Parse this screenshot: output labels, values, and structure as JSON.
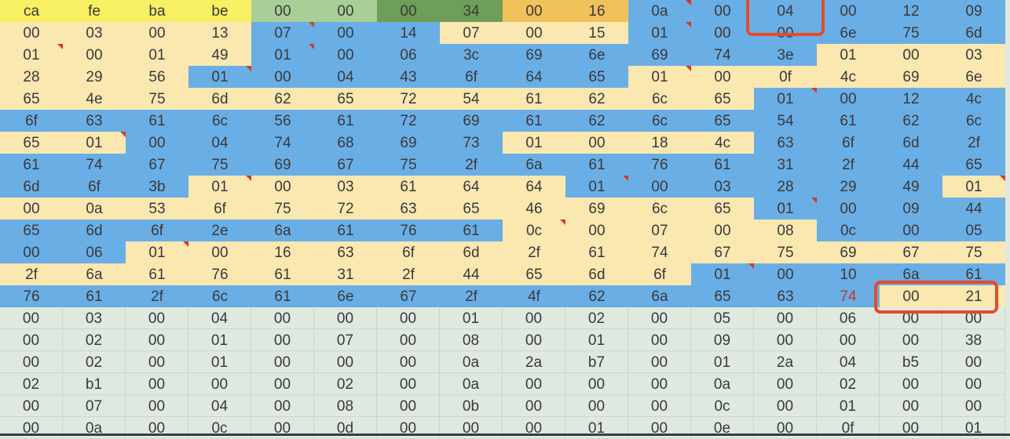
{
  "hex_sheet": {
    "rows": [
      [
        "ca",
        "fe",
        "ba",
        "be",
        "00",
        "00",
        "00",
        "34",
        "00",
        "16",
        "0a",
        "00",
        "04",
        "00",
        "12",
        "09"
      ],
      [
        "00",
        "03",
        "00",
        "13",
        "07",
        "00",
        "14",
        "07",
        "00",
        "15",
        "01",
        "00",
        "00",
        "6e",
        "75",
        "6d"
      ],
      [
        "01",
        "00",
        "01",
        "49",
        "01",
        "00",
        "06",
        "3c",
        "69",
        "6e",
        "69",
        "74",
        "3e",
        "01",
        "00",
        "03"
      ],
      [
        "28",
        "29",
        "56",
        "01",
        "00",
        "04",
        "43",
        "6f",
        "64",
        "65",
        "01",
        "00",
        "0f",
        "4c",
        "69",
        "6e"
      ],
      [
        "65",
        "4e",
        "75",
        "6d",
        "62",
        "65",
        "72",
        "54",
        "61",
        "62",
        "6c",
        "65",
        "01",
        "00",
        "12",
        "4c"
      ],
      [
        "6f",
        "63",
        "61",
        "6c",
        "56",
        "61",
        "72",
        "69",
        "61",
        "62",
        "6c",
        "65",
        "54",
        "61",
        "62",
        "6c"
      ],
      [
        "65",
        "01",
        "00",
        "04",
        "74",
        "68",
        "69",
        "73",
        "01",
        "00",
        "18",
        "4c",
        "63",
        "6f",
        "6d",
        "2f"
      ],
      [
        "61",
        "74",
        "67",
        "75",
        "69",
        "67",
        "75",
        "2f",
        "6a",
        "61",
        "76",
        "61",
        "31",
        "2f",
        "44",
        "65"
      ],
      [
        "6d",
        "6f",
        "3b",
        "01",
        "00",
        "03",
        "61",
        "64",
        "64",
        "01",
        "00",
        "03",
        "28",
        "29",
        "49",
        "01"
      ],
      [
        "00",
        "0a",
        "53",
        "6f",
        "75",
        "72",
        "63",
        "65",
        "46",
        "69",
        "6c",
        "65",
        "01",
        "00",
        "09",
        "44"
      ],
      [
        "65",
        "6d",
        "6f",
        "2e",
        "6a",
        "61",
        "76",
        "61",
        "0c",
        "00",
        "07",
        "00",
        "08",
        "0c",
        "00",
        "05"
      ],
      [
        "00",
        "06",
        "01",
        "00",
        "16",
        "63",
        "6f",
        "6d",
        "2f",
        "61",
        "74",
        "67",
        "75",
        "69",
        "67",
        "75"
      ],
      [
        "2f",
        "6a",
        "61",
        "76",
        "61",
        "31",
        "2f",
        "44",
        "65",
        "6d",
        "6f",
        "01",
        "00",
        "10",
        "6a",
        "61"
      ],
      [
        "76",
        "61",
        "2f",
        "6c",
        "61",
        "6e",
        "67",
        "2f",
        "4f",
        "62",
        "6a",
        "65",
        "63",
        "74",
        "00",
        "21"
      ],
      [
        "00",
        "03",
        "00",
        "04",
        "00",
        "00",
        "00",
        "01",
        "00",
        "02",
        "00",
        "05",
        "00",
        "06",
        "00",
        "00"
      ],
      [
        "00",
        "02",
        "00",
        "01",
        "00",
        "07",
        "00",
        "08",
        "00",
        "01",
        "00",
        "09",
        "00",
        "00",
        "00",
        "38"
      ],
      [
        "00",
        "02",
        "00",
        "01",
        "00",
        "00",
        "00",
        "0a",
        "2a",
        "b7",
        "00",
        "01",
        "2a",
        "04",
        "b5",
        "00"
      ],
      [
        "02",
        "b1",
        "00",
        "00",
        "00",
        "02",
        "00",
        "0a",
        "00",
        "00",
        "00",
        "0a",
        "00",
        "02",
        "00",
        "00"
      ],
      [
        "00",
        "07",
        "00",
        "04",
        "00",
        "08",
        "00",
        "0b",
        "00",
        "00",
        "00",
        "0c",
        "00",
        "01",
        "00",
        "00"
      ],
      [
        "00",
        "0a",
        "00",
        "0c",
        "00",
        "0d",
        "00",
        "00",
        "00",
        "01",
        "00",
        "0e",
        "00",
        "0f",
        "00",
        "01"
      ]
    ],
    "fills": [
      "YYYYGGDDOOBBBBBB",
      "CCCCBBBCCCBBBBBB",
      "CCCCBBBBBBBBBCCC",
      "CCCBBBBBBBCCCCCC",
      "CCCCCCCCCCCCBBBB",
      "BBBBBBBBBBBBBBBB",
      "CCBBBBBBCCCCBBBB",
      "BBBBBBBBBBBBBBBB",
      "BBBCCCCCCBBBBBBC",
      "CCCCCCCCCCCCBBBB",
      "BBBBBBBBCCCCCBBB",
      "BBCCCCCCCCCCCCCC",
      "CCCCCCCCCCCBBBBB",
      "BBBBBBBBBBBBBBCC",
      "PPPPPPPPPPPPPPPP",
      "PPPPPPPPPPPPPPPP",
      "PPPPPPPPPPPPPPPP",
      "PPPPPPPPPPPPPPPP",
      "PPPPPPPPPPPPPPPP",
      "PPPPPPPPPPPPPPPP"
    ],
    "comment_markers": [
      [
        0,
        10
      ],
      [
        1,
        4
      ],
      [
        1,
        10
      ],
      [
        2,
        0
      ],
      [
        2,
        4
      ],
      [
        3,
        3
      ],
      [
        3,
        10
      ],
      [
        4,
        12
      ],
      [
        6,
        1
      ],
      [
        8,
        3
      ],
      [
        8,
        9
      ],
      [
        8,
        15
      ],
      [
        9,
        12
      ],
      [
        10,
        8
      ],
      [
        11,
        2
      ],
      [
        12,
        11
      ]
    ],
    "red_text_cells": [
      [
        13,
        13
      ]
    ],
    "colors": {
      "yellow": "#f7f062",
      "light_green": "#a9cf97",
      "dark_green": "#6e9e58",
      "orange": "#f0c25a",
      "blue": "#6aaee6",
      "cream": "#fbe7b0",
      "pale": "#dfe9df",
      "highlight_border": "#e44b2c",
      "comment_marker": "#d03a2a"
    }
  }
}
